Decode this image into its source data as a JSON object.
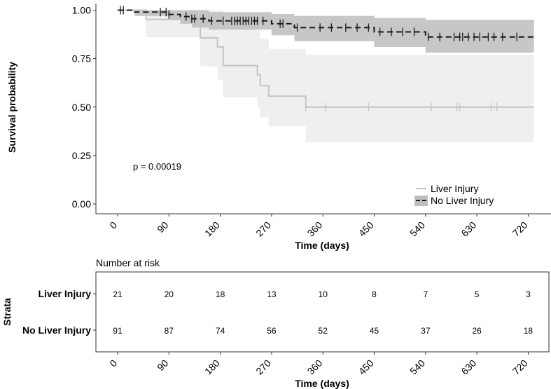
{
  "chart_data": {
    "type": "kaplan-meier survival curve with risk table",
    "title": "",
    "ylabel": "Survival probability",
    "xlabel": "Time (days)",
    "xlim": [
      0,
      730
    ],
    "ylim": [
      0,
      1
    ],
    "xticks": [
      0,
      90,
      180,
      270,
      360,
      450,
      540,
      630,
      720
    ],
    "x_tick_labels": [
      "0",
      "90",
      "180",
      "270",
      "360",
      "450",
      "540",
      "630",
      "720"
    ],
    "y_tick_labels": [
      "0.00",
      "0.25",
      "0.50",
      "0.75",
      "1.00"
    ],
    "y_tick_values": [
      0,
      0.25,
      0.5,
      0.75,
      1.0
    ],
    "p_value_label": "p = 0.00019",
    "grid": false,
    "legend_position": "bottom-right",
    "series": [
      {
        "name": "Liver Injury",
        "color": "#c4c4c4",
        "ci_color": "#efefef",
        "line_style": "solid",
        "steps": [
          [
            0,
            1.0
          ],
          [
            50,
            0.952
          ],
          [
            145,
            0.857
          ],
          [
            175,
            0.81
          ],
          [
            185,
            0.714
          ],
          [
            245,
            0.667
          ],
          [
            250,
            0.611
          ],
          [
            265,
            0.556
          ],
          [
            330,
            0.5
          ],
          [
            730,
            0.5
          ]
        ],
        "ci_steps": [
          [
            0,
            1.0,
            1.0
          ],
          [
            50,
            0.86,
            1.0
          ],
          [
            145,
            0.71,
            1.0
          ],
          [
            175,
            0.64,
            1.0
          ],
          [
            185,
            0.55,
            0.95
          ],
          [
            245,
            0.5,
            0.9
          ],
          [
            250,
            0.45,
            0.85
          ],
          [
            265,
            0.4,
            0.8
          ],
          [
            330,
            0.32,
            0.77
          ],
          [
            730,
            0.32,
            0.77
          ]
        ],
        "censor_times": [
          330,
          365,
          440,
          550,
          595,
          600,
          655,
          665
        ]
      },
      {
        "name": "No Liver Injury",
        "color": "#1a1a1a",
        "ci_color": "#bdbdbd",
        "line_style": "dashed",
        "steps": [
          [
            0,
            1.0
          ],
          [
            30,
            0.99
          ],
          [
            90,
            0.978
          ],
          [
            110,
            0.967
          ],
          [
            130,
            0.956
          ],
          [
            160,
            0.945
          ],
          [
            270,
            0.93
          ],
          [
            310,
            0.91
          ],
          [
            450,
            0.888
          ],
          [
            540,
            0.862
          ],
          [
            730,
            0.862
          ]
        ],
        "ci_steps": [
          [
            0,
            1.0,
            1.0
          ],
          [
            30,
            0.97,
            1.0
          ],
          [
            90,
            0.95,
            1.0
          ],
          [
            110,
            0.93,
            1.0
          ],
          [
            130,
            0.91,
            1.0
          ],
          [
            160,
            0.9,
            0.99
          ],
          [
            270,
            0.87,
            0.98
          ],
          [
            310,
            0.84,
            0.97
          ],
          [
            450,
            0.81,
            0.96
          ],
          [
            540,
            0.78,
            0.95
          ],
          [
            730,
            0.78,
            0.95
          ]
        ],
        "censor_times": [
          5,
          10,
          75,
          85,
          90,
          120,
          130,
          135,
          150,
          165,
          185,
          200,
          205,
          210,
          215,
          220,
          225,
          230,
          235,
          240,
          245,
          255,
          285,
          290,
          315,
          355,
          375,
          400,
          420,
          440,
          460,
          480,
          500,
          520,
          545,
          565,
          590,
          600,
          605,
          615,
          625,
          635,
          650,
          660,
          675,
          700
        ]
      }
    ],
    "risk_table": {
      "title": "Number at risk",
      "ylabel": "Strata",
      "xlabel": "Time (days)",
      "times": [
        0,
        90,
        180,
        270,
        360,
        450,
        540,
        630,
        720
      ],
      "rows": [
        {
          "label": "Liver Injury",
          "values": [
            "21",
            "20",
            "18",
            "13",
            "10",
            "8",
            "7",
            "5",
            "3"
          ]
        },
        {
          "label": "No Liver Injury",
          "values": [
            "91",
            "87",
            "74",
            "56",
            "52",
            "45",
            "37",
            "26",
            "18"
          ]
        }
      ]
    }
  }
}
